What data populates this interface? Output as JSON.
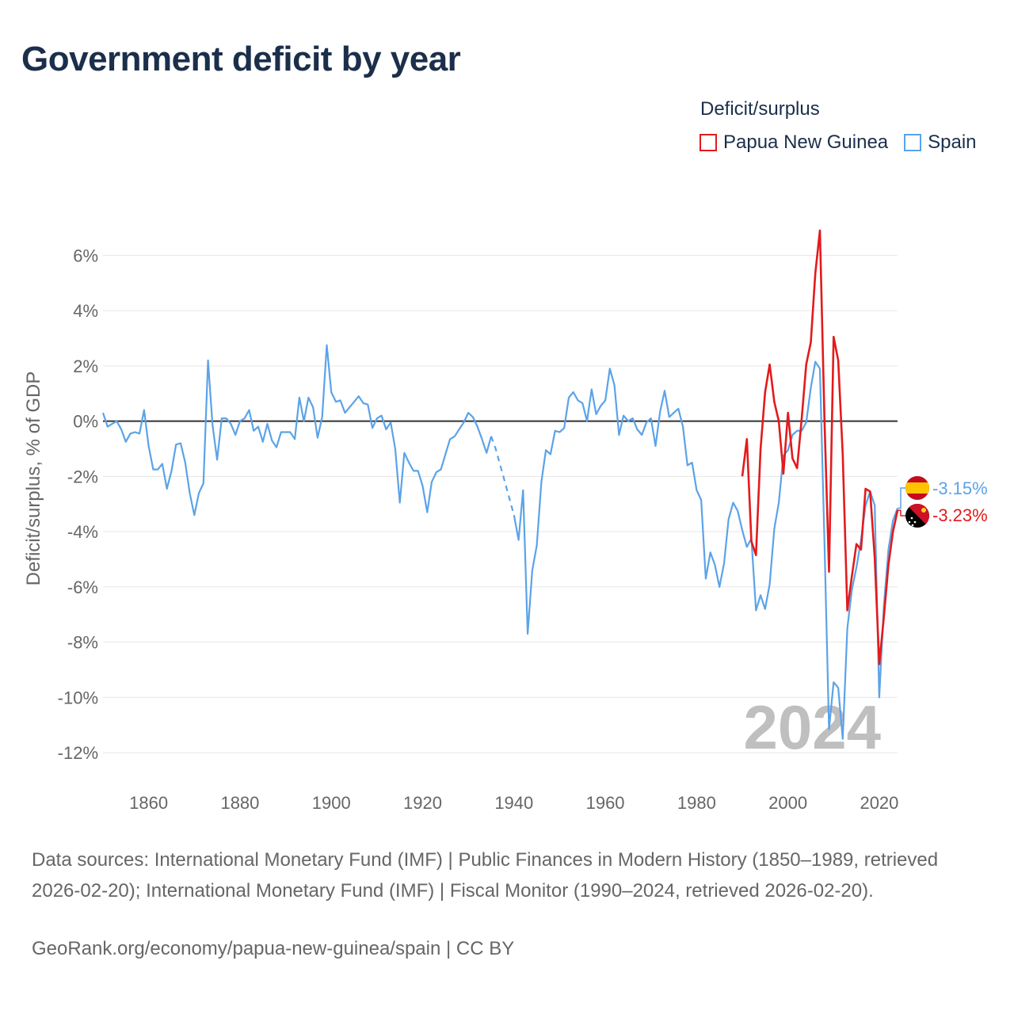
{
  "title": "Government deficit by year",
  "legend": {
    "title": "Deficit/surplus",
    "items": [
      {
        "label": "Papua New Guinea",
        "color": "#e31a1c"
      },
      {
        "label": "Spain",
        "color": "#5ba3e8"
      }
    ]
  },
  "year_watermark": "2024",
  "end_labels": {
    "spain": "-3.15%",
    "png": "-3.23%"
  },
  "footer": {
    "sources": "Data sources: International Monetary Fund (IMF) | Public Finances in Modern History (1850–1989, retrieved 2026-02-20); International Monetary Fund (IMF) | Fiscal Monitor (1990–2024, retrieved 2026-02-20).",
    "credit": "GeoRank.org/economy/papua-new-guinea/spain | CC BY"
  },
  "chart_data": {
    "type": "line",
    "title": "Government deficit by year",
    "xlabel": "",
    "ylabel": "Deficit/surplus, % of GDP",
    "xlim": [
      1850,
      2024
    ],
    "ylim": [
      -13,
      7.5
    ],
    "xticks": [
      1860,
      1880,
      1900,
      1920,
      1940,
      1960,
      1980,
      2000,
      2020
    ],
    "yticks": [
      6,
      4,
      2,
      0,
      -2,
      -4,
      -6,
      -8,
      -10,
      -12
    ],
    "ytick_labels": [
      "6%",
      "4%",
      "2%",
      "0%",
      "-2%",
      "-4%",
      "-6%",
      "-8%",
      "-10%",
      "-12%"
    ],
    "xtick_labels": [
      "1860",
      "1880",
      "1900",
      "1920",
      "1940",
      "1960",
      "1980",
      "2000",
      "2020"
    ],
    "series": [
      {
        "name": "Spain",
        "color": "#5ba3e8",
        "segments": [
          {
            "x": [
              1850,
              1851,
              1852,
              1853,
              1854,
              1855,
              1856,
              1857,
              1858,
              1859,
              1860,
              1861,
              1862,
              1863,
              1864,
              1865,
              1866,
              1867,
              1868,
              1869,
              1870,
              1871,
              1872,
              1873,
              1874,
              1875,
              1876,
              1877,
              1878,
              1879,
              1880,
              1881,
              1882,
              1883,
              1884,
              1885,
              1886,
              1887,
              1888,
              1889,
              1890,
              1891,
              1892,
              1893,
              1894,
              1895,
              1896,
              1897,
              1898,
              1899,
              1900,
              1901,
              1902,
              1903,
              1904,
              1905,
              1906,
              1907,
              1908,
              1909,
              1910,
              1911,
              1912,
              1913,
              1914,
              1915,
              1916,
              1917,
              1918,
              1919,
              1920,
              1921,
              1922,
              1923,
              1924,
              1925,
              1926,
              1927,
              1928,
              1929,
              1930,
              1931,
              1932,
              1933,
              1934,
              1935
            ],
            "y": [
              0.3,
              -0.2,
              -0.1,
              0.0,
              -0.3,
              -0.75,
              -0.45,
              -0.4,
              -0.45,
              0.4,
              -0.9,
              -1.75,
              -1.75,
              -1.55,
              -2.45,
              -1.8,
              -0.85,
              -0.8,
              -1.5,
              -2.6,
              -3.4,
              -2.6,
              -2.25,
              2.2,
              -0.15,
              -1.4,
              0.1,
              0.1,
              -0.1,
              -0.5,
              0.0,
              0.1,
              0.4,
              -0.35,
              -0.2,
              -0.75,
              -0.1,
              -0.7,
              -0.95,
              -0.4,
              -0.4,
              -0.4,
              -0.65,
              0.85,
              0.0,
              0.85,
              0.5,
              -0.6,
              0.15,
              2.75,
              1.05,
              0.7,
              0.75,
              0.3,
              0.5,
              0.7,
              0.9,
              0.65,
              0.6,
              -0.25,
              0.1,
              0.2,
              -0.3,
              -0.05,
              -1.0,
              -2.95,
              -1.15,
              -1.5,
              -1.8,
              -1.8,
              -2.35,
              -3.3,
              -2.2,
              -1.85,
              -1.75,
              -1.2,
              -0.65,
              -0.55,
              -0.3,
              -0.05,
              0.3,
              0.15,
              -0.2,
              -0.65,
              -1.15,
              -0.55
            ]
          },
          {
            "x": [
              1935,
              1936,
              1937,
              1938,
              1939,
              1940
            ],
            "y": [
              -0.55,
              -1.0,
              -1.6,
              -2.2,
              -2.8,
              -3.4
            ],
            "dashed": true
          },
          {
            "x": [
              1940,
              1941,
              1942,
              1943,
              1944,
              1945,
              1946,
              1947,
              1948,
              1949,
              1950,
              1951,
              1952,
              1953,
              1954,
              1955,
              1956,
              1957,
              1958,
              1959,
              1960,
              1961,
              1962,
              1963,
              1964,
              1965,
              1966,
              1967,
              1968,
              1969,
              1970,
              1971,
              1972,
              1973,
              1974,
              1975,
              1976,
              1977,
              1978,
              1979,
              1980,
              1981,
              1982,
              1983,
              1984,
              1985,
              1986,
              1987,
              1988,
              1989,
              1990,
              1991,
              1992,
              1993,
              1994,
              1995,
              1996,
              1997,
              1998,
              1999,
              2000,
              2001,
              2002,
              2003,
              2004,
              2005,
              2006,
              2007,
              2008,
              2009,
              2010,
              2011,
              2012,
              2013,
              2014,
              2015,
              2016,
              2017,
              2018,
              2019,
              2020,
              2021,
              2022,
              2023,
              2024
            ],
            "y": [
              -3.4,
              -4.3,
              -2.5,
              -7.7,
              -5.4,
              -4.5,
              -2.2,
              -1.05,
              -1.2,
              -0.35,
              -0.4,
              -0.25,
              0.85,
              1.05,
              0.75,
              0.65,
              0.0,
              1.15,
              0.25,
              0.55,
              0.75,
              1.9,
              1.3,
              -0.5,
              0.2,
              0.0,
              0.1,
              -0.3,
              -0.5,
              -0.05,
              0.1,
              -0.9,
              0.35,
              1.1,
              0.15,
              0.3,
              0.45,
              -0.2,
              -1.6,
              -1.5,
              -2.5,
              -2.85,
              -5.7,
              -4.75,
              -5.2,
              -6.0,
              -5.15,
              -3.55,
              -2.95,
              -3.25,
              -3.95,
              -4.55,
              -4.25,
              -6.85,
              -6.3,
              -6.8,
              -5.9,
              -3.9,
              -2.95,
              -1.25,
              -1.05,
              -0.5,
              -0.35,
              -0.35,
              -0.05,
              1.2,
              2.15,
              1.9,
              -4.45,
              -11.15,
              -9.45,
              -9.65,
              -11.5,
              -7.5,
              -6.1,
              -5.3,
              -4.3,
              -3.05,
              -2.55,
              -3.05,
              -10.0,
              -6.7,
              -4.65,
              -3.6,
              -3.15
            ]
          }
        ]
      },
      {
        "name": "Papua New Guinea",
        "color": "#e31a1c",
        "segments": [
          {
            "x": [
              1990,
              1991,
              1992,
              1993,
              1994,
              1995,
              1996,
              1997,
              1998,
              1999,
              2000,
              2001,
              2002,
              2003,
              2004,
              2005,
              2006,
              2007,
              2008,
              2009,
              2010,
              2011,
              2012,
              2013,
              2014,
              2015,
              2016,
              2017,
              2018,
              2019,
              2020,
              2021,
              2022,
              2023,
              2024
            ],
            "y": [
              -2.0,
              -0.65,
              -4.35,
              -4.85,
              -1.0,
              1.05,
              2.05,
              0.7,
              0.0,
              -1.9,
              0.3,
              -1.35,
              -1.7,
              0.05,
              2.05,
              2.85,
              5.35,
              6.9,
              0.0,
              -5.45,
              3.05,
              2.2,
              -1.2,
              -6.85,
              -5.6,
              -4.45,
              -4.65,
              -2.45,
              -2.55,
              -4.95,
              -8.8,
              -7.1,
              -5.2,
              -4.0,
              -3.23
            ]
          }
        ]
      }
    ]
  }
}
